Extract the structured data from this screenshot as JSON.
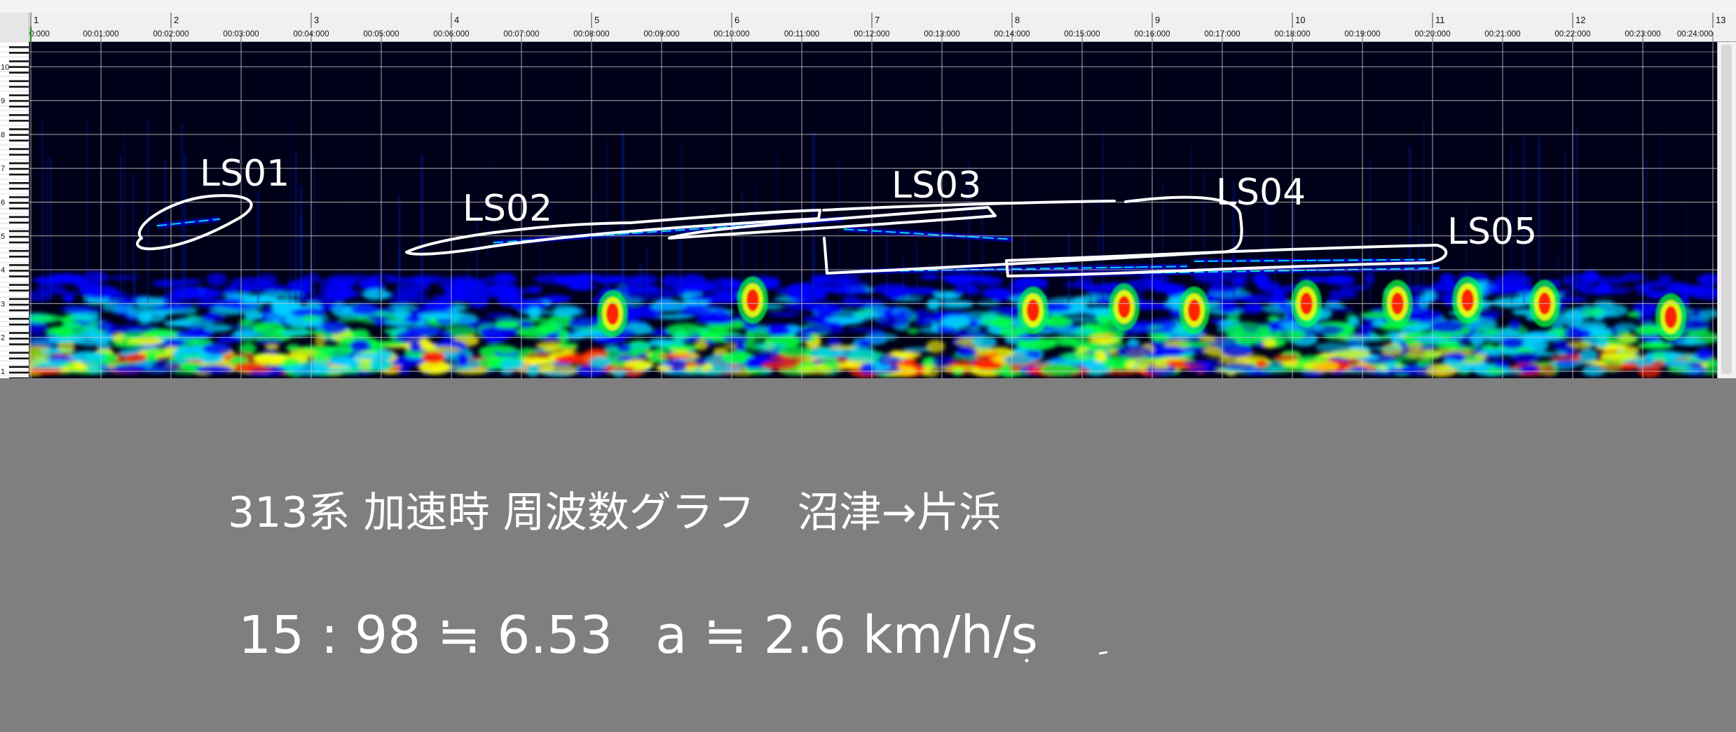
{
  "chart_data": {
    "type": "heatmap",
    "title": "",
    "xlabel": "",
    "ylabel": "",
    "measures": [
      "1",
      "2",
      "3",
      "4",
      "5",
      "6",
      "7",
      "8",
      "9",
      "10",
      "11",
      "12",
      "13"
    ],
    "time_ticks": [
      "0:000",
      "00:01:000",
      "00:02:000",
      "00:03:000",
      "00:04:000",
      "00:05:000",
      "00:06:000",
      "00:07:000",
      "00:08:000",
      "00:09:000",
      "00:10:000",
      "00:11:000",
      "00:12:000",
      "00:13:000",
      "00:14:000",
      "00:15:000",
      "00:16:000",
      "00:17:000",
      "00:18:000",
      "00:19:000",
      "00:20:000",
      "00:21:000",
      "00:22:000",
      "00:23:000",
      "00:24:000"
    ],
    "octave_labels": [
      "1",
      "2",
      "3",
      "4",
      "5",
      "6",
      "7",
      "8",
      "9",
      "10"
    ],
    "xlim_seconds": [
      0,
      24
    ],
    "ylim_octave": [
      0.8,
      10.8
    ],
    "grid": true,
    "colormap": [
      "#000018",
      "#0000ff",
      "#00d0ff",
      "#00ff40",
      "#ffff00",
      "#ff2000"
    ],
    "tone_lines": [
      {
        "t_start": 1.8,
        "t_end": 2.7,
        "octave_start": 5.3,
        "octave_end": 5.5
      },
      {
        "t_start": 6.6,
        "t_end": 11.6,
        "octave_start": 4.8,
        "octave_end": 5.5
      },
      {
        "t_start": 11.6,
        "t_end": 14.0,
        "octave_start": 5.2,
        "octave_end": 4.9
      },
      {
        "t_start": 11.8,
        "t_end": 16.5,
        "octave_start": 3.95,
        "octave_end": 4.1
      },
      {
        "t_start": 14.4,
        "t_end": 20.1,
        "octave_start": 3.85,
        "octave_end": 4.05
      },
      {
        "t_start": 16.6,
        "t_end": 19.9,
        "octave_start": 4.25,
        "octave_end": 4.3
      }
    ],
    "hot_bursts": [
      {
        "t": 8.3,
        "octave": 2.7
      },
      {
        "t": 10.3,
        "octave": 3.1
      },
      {
        "t": 14.3,
        "octave": 2.8
      },
      {
        "t": 15.6,
        "octave": 2.9
      },
      {
        "t": 16.6,
        "octave": 2.8
      },
      {
        "t": 18.2,
        "octave": 3.0
      },
      {
        "t": 19.5,
        "octave": 3.0
      },
      {
        "t": 20.5,
        "octave": 3.1
      },
      {
        "t": 21.6,
        "octave": 3.0
      },
      {
        "t": 23.4,
        "octave": 2.6
      }
    ],
    "annotations": [
      "LS01",
      "LS02",
      "LS03",
      "LS04",
      "LS05"
    ]
  },
  "notes": {
    "title_line": "313系 加速時 周波数グラフ　沼津→片浜",
    "calc_line": "15 : 98 ≒ 6.53",
    "accel_line": "a ≒ 2.6 km/h/s"
  }
}
